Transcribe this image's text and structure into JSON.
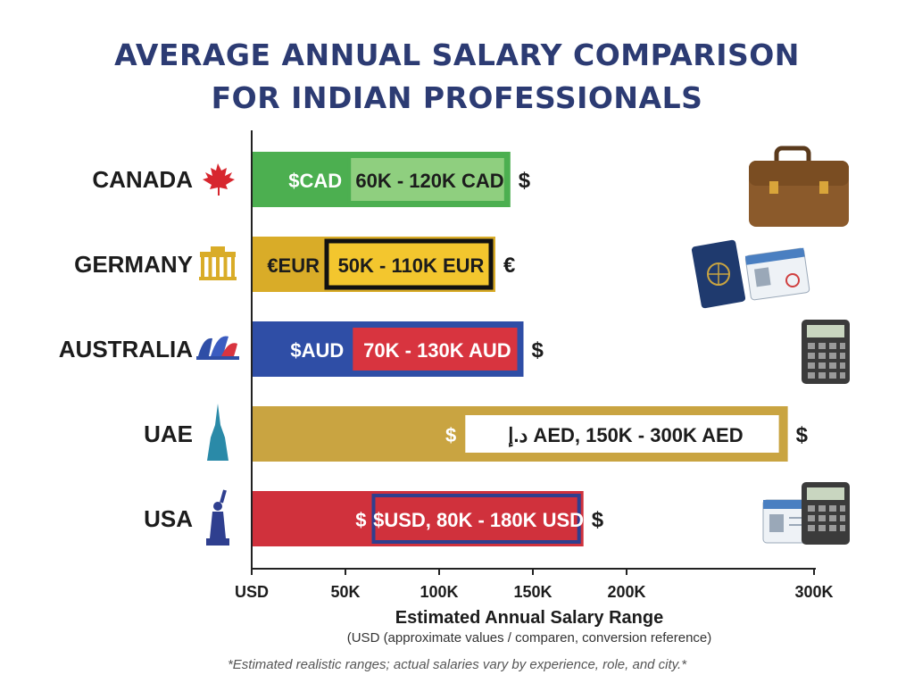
{
  "header": {
    "title_line1": "AVERAGE ANNUAL SALARY COMPARISON",
    "title_line2": "FOR INDIAN PROFESSIONALS"
  },
  "footnote": "*Estimated realistic ranges; actual salaries vary by experience, role, and city.*",
  "chart_data": {
    "type": "bar",
    "orientation": "horizontal",
    "title": "AVERAGE ANNUAL SALARY COMPARISON FOR INDIAN PROFESSIONALS",
    "xlabel": "Estimated Annual Salary Range",
    "xsublabel": "(USD (approximate values / comparen, conversion reference)",
    "xlim": [
      0,
      300000
    ],
    "x_ticks": [
      {
        "value": 0,
        "label": "USD"
      },
      {
        "value": 50000,
        "label": "50K"
      },
      {
        "value": 100000,
        "label": "100K"
      },
      {
        "value": 150000,
        "label": "150K"
      },
      {
        "value": 200000,
        "label": "200K"
      },
      {
        "value": 300000,
        "label": "300K"
      }
    ],
    "grid": false,
    "categories": [
      "CANADA",
      "GERMANY",
      "AUSTRALIA",
      "UAE",
      "USA"
    ],
    "bars": [
      {
        "country": "CANADA",
        "currency_tag": "$CAD",
        "range_label": "60K - 120K CAD",
        "symbol": "$",
        "icon": "maple-leaf-icon",
        "total_usd": 138000,
        "split_usd": 52000,
        "color_main": "#4caf50",
        "color_inner": "#8fcf7f",
        "color_border": "#4caf50",
        "tag_color": "#ffffff",
        "label_color": "#1c1c1c"
      },
      {
        "country": "GERMANY",
        "currency_tag": "€EUR",
        "range_label": "50K - 110K EUR",
        "symbol": "€",
        "icon": "brandenburg-gate-icon",
        "total_usd": 130000,
        "split_usd": 40000,
        "color_main": "#d9ac28",
        "color_inner": "#f3c62e",
        "color_border": "#111111",
        "tag_color": "#1c1c1c",
        "label_color": "#1c1c1c"
      },
      {
        "country": "AUSTRALIA",
        "currency_tag": "$AUD",
        "range_label": "70K - 130K AUD",
        "symbol": "$",
        "icon": "opera-house-icon",
        "total_usd": 145000,
        "split_usd": 53000,
        "color_main": "#2f4ea6",
        "color_inner": "#d8343f",
        "color_border": "#2f4ea6",
        "tag_color": "#ffffff",
        "label_color": "#ffffff"
      },
      {
        "country": "UAE",
        "currency_tag": "$",
        "range_label": "د.إ AED, 150K - 300K AED",
        "symbol": "$",
        "icon": "burj-khalifa-icon",
        "total_usd": 286000,
        "split_usd": 113000,
        "color_main": "#c9a441",
        "color_inner": "#ffffff",
        "color_border": "#c9a441",
        "tag_color": "#ffffff",
        "label_color": "#1c1c1c"
      },
      {
        "country": "USA",
        "currency_tag": "$",
        "range_label": "$USD,  80K - 180K USD",
        "symbol": "$",
        "icon": "statue-of-liberty-icon",
        "total_usd": 177000,
        "split_usd": 65000,
        "color_main": "#d0313c",
        "color_inner": "#d0313c",
        "color_border": "#2f3f8f",
        "tag_color": "#ffffff",
        "label_color": "#ffffff"
      }
    ]
  }
}
